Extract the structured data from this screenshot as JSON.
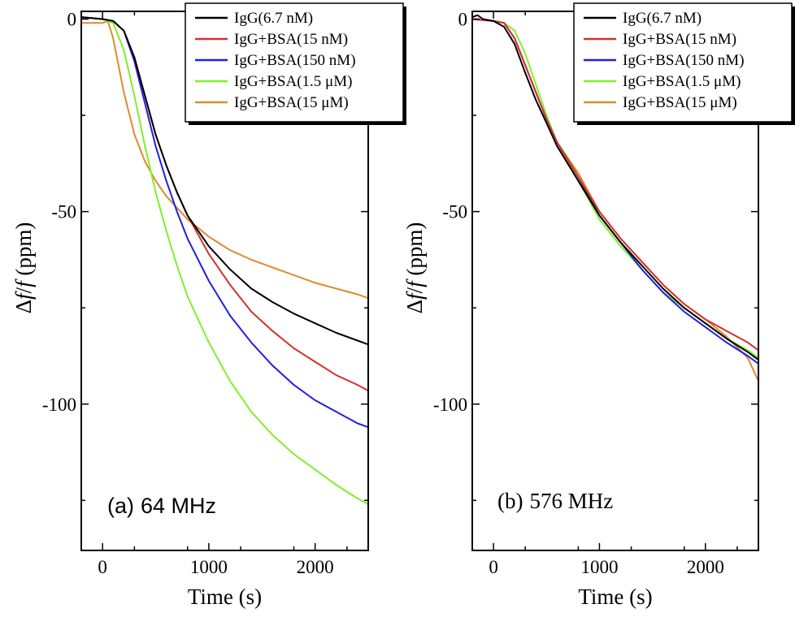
{
  "chart_data": [
    {
      "type": "line",
      "panel_label": "(a)",
      "title": "64 MHz",
      "xlabel": "Time (s)",
      "ylabel_parts": [
        "Δ",
        "f",
        "/",
        "f",
        " (ppm)"
      ],
      "xlim": [
        -200,
        2500
      ],
      "ylim": [
        -138,
        2
      ],
      "xticks": [
        0,
        1000,
        2000
      ],
      "xtick_labels": [
        "0",
        "1000",
        "2000"
      ],
      "yticks": [
        0,
        -50,
        -100
      ],
      "ytick_labels": [
        "0",
        "-50",
        "-100"
      ],
      "legend_position": "top-right",
      "series": [
        {
          "name": "IgG(6.7 nM)",
          "color": "#000000",
          "x": [
            -200,
            0,
            100,
            200,
            300,
            400,
            500,
            600,
            700,
            800,
            1000,
            1200,
            1400,
            1600,
            1800,
            2000,
            2200,
            2400,
            2500
          ],
          "y": [
            0.5,
            0,
            -0.5,
            -3,
            -10,
            -20,
            -30,
            -38,
            -45,
            -51,
            -59,
            -65,
            -70,
            -73.5,
            -76.5,
            -79,
            -81.5,
            -83.5,
            -84.5
          ]
        },
        {
          "name": "IgG+BSA(15 nM)",
          "color": "#d2322d",
          "x": [
            -200,
            0,
            100,
            200,
            300,
            400,
            500,
            600,
            700,
            800,
            1000,
            1200,
            1400,
            1600,
            1800,
            2000,
            2200,
            2400,
            2500
          ],
          "y": [
            0.5,
            0,
            -0.5,
            -3,
            -10,
            -20,
            -30,
            -38,
            -45,
            -51,
            -61,
            -69,
            -76,
            -81,
            -85.5,
            -89,
            -92.5,
            -95,
            -96.5
          ]
        },
        {
          "name": "IgG+BSA(150 nM)",
          "color": "#1f1fe6",
          "x": [
            -200,
            0,
            100,
            200,
            300,
            400,
            500,
            600,
            700,
            800,
            1000,
            1200,
            1400,
            1600,
            1800,
            2000,
            2200,
            2400,
            2500
          ],
          "y": [
            0.5,
            0,
            -0.5,
            -3,
            -11,
            -22,
            -33,
            -42,
            -50,
            -57,
            -68,
            -77,
            -84,
            -90,
            -95,
            -99,
            -102,
            -105,
            -106
          ]
        },
        {
          "name": "IgG+BSA(1.5 μM)",
          "color": "#7ff02a",
          "x": [
            -200,
            0,
            100,
            200,
            300,
            400,
            500,
            600,
            700,
            800,
            1000,
            1200,
            1400,
            1600,
            1800,
            2000,
            2200,
            2400,
            2500
          ],
          "y": [
            0.5,
            0,
            -1,
            -8,
            -20,
            -33,
            -45,
            -55,
            -64,
            -72,
            -84,
            -94,
            -102,
            -108,
            -113,
            -117,
            -121,
            -124.5,
            -126
          ]
        },
        {
          "name": "IgG+BSA(15 μM)",
          "color": "#e08a2c",
          "x": [
            -200,
            0,
            50,
            100,
            200,
            300,
            400,
            500,
            600,
            700,
            800,
            1000,
            1200,
            1400,
            1600,
            1800,
            2000,
            2200,
            2400,
            2500
          ],
          "y": [
            -1,
            -1,
            -0.5,
            -5,
            -19,
            -30,
            -37,
            -42,
            -46,
            -49,
            -52,
            -56.5,
            -60,
            -62.5,
            -64.5,
            -66.5,
            -68.5,
            -70,
            -71.5,
            -72.5
          ]
        }
      ]
    },
    {
      "type": "line",
      "panel_label": "(b)",
      "title": "576 MHz",
      "xlabel": "Time (s)",
      "ylabel_parts": [
        "Δ",
        "f",
        "/",
        "f",
        " (ppm)"
      ],
      "xlim": [
        -200,
        2500
      ],
      "ylim": [
        -138,
        2
      ],
      "xticks": [
        0,
        1000,
        2000
      ],
      "xtick_labels": [
        "0",
        "1000",
        "2000"
      ],
      "yticks": [
        0,
        -50,
        -100
      ],
      "ytick_labels": [
        "0",
        "-50",
        "-100"
      ],
      "legend_position": "top-right",
      "series": [
        {
          "name": "IgG(6.7 nM)",
          "color": "#000000",
          "x": [
            -200,
            -150,
            -100,
            0,
            100,
            200,
            300,
            400,
            500,
            600,
            800,
            1000,
            1200,
            1400,
            1600,
            1800,
            2000,
            2200,
            2400,
            2500
          ],
          "y": [
            0.5,
            1,
            0,
            -0.5,
            -2,
            -6.5,
            -14,
            -21,
            -27,
            -33,
            -42,
            -51,
            -58,
            -64,
            -70,
            -75,
            -79,
            -83,
            -86.5,
            -88.5
          ]
        },
        {
          "name": "IgG+BSA(15 nM)",
          "color": "#d2322d",
          "x": [
            -200,
            0,
            100,
            200,
            300,
            400,
            500,
            600,
            800,
            1000,
            1200,
            1400,
            1600,
            1800,
            2000,
            2200,
            2400,
            2500
          ],
          "y": [
            0,
            -0.5,
            -1,
            -5,
            -12,
            -19,
            -26,
            -32,
            -41,
            -50,
            -57,
            -63,
            -69,
            -74,
            -78,
            -81,
            -84,
            -86
          ]
        },
        {
          "name": "IgG+BSA(150 nM)",
          "color": "#1f1fe6",
          "x": [
            -200,
            0,
            100,
            200,
            300,
            400,
            500,
            600,
            800,
            1000,
            1200,
            1400,
            1600,
            1800,
            2000,
            2200,
            2400,
            2500
          ],
          "y": [
            0,
            -0.5,
            -1,
            -5,
            -12,
            -19,
            -26,
            -32,
            -41,
            -51,
            -58,
            -65,
            -71,
            -76,
            -80,
            -84,
            -87.5,
            -89.5
          ]
        },
        {
          "name": "IgG+BSA(1.5 μM)",
          "color": "#7ff02a",
          "x": [
            -200,
            0,
            100,
            200,
            300,
            400,
            500,
            600,
            800,
            1000,
            1200,
            1400,
            1600,
            1800,
            2000,
            2200,
            2400,
            2500
          ],
          "y": [
            0,
            -0.5,
            -1,
            -3,
            -9,
            -17,
            -25,
            -32,
            -42,
            -52,
            -59,
            -65,
            -71,
            -75,
            -79,
            -83,
            -86,
            -88
          ]
        },
        {
          "name": "IgG+BSA(15 μM)",
          "color": "#e08a2c",
          "x": [
            -200,
            0,
            100,
            200,
            300,
            400,
            500,
            600,
            800,
            1000,
            1200,
            1400,
            1600,
            1800,
            2000,
            2200,
            2400,
            2500
          ],
          "y": [
            0,
            -0.5,
            -1,
            -5,
            -12,
            -19,
            -26,
            -32,
            -40,
            -50,
            -57,
            -63,
            -69,
            -74,
            -78,
            -82.5,
            -88,
            -94
          ]
        }
      ]
    }
  ]
}
